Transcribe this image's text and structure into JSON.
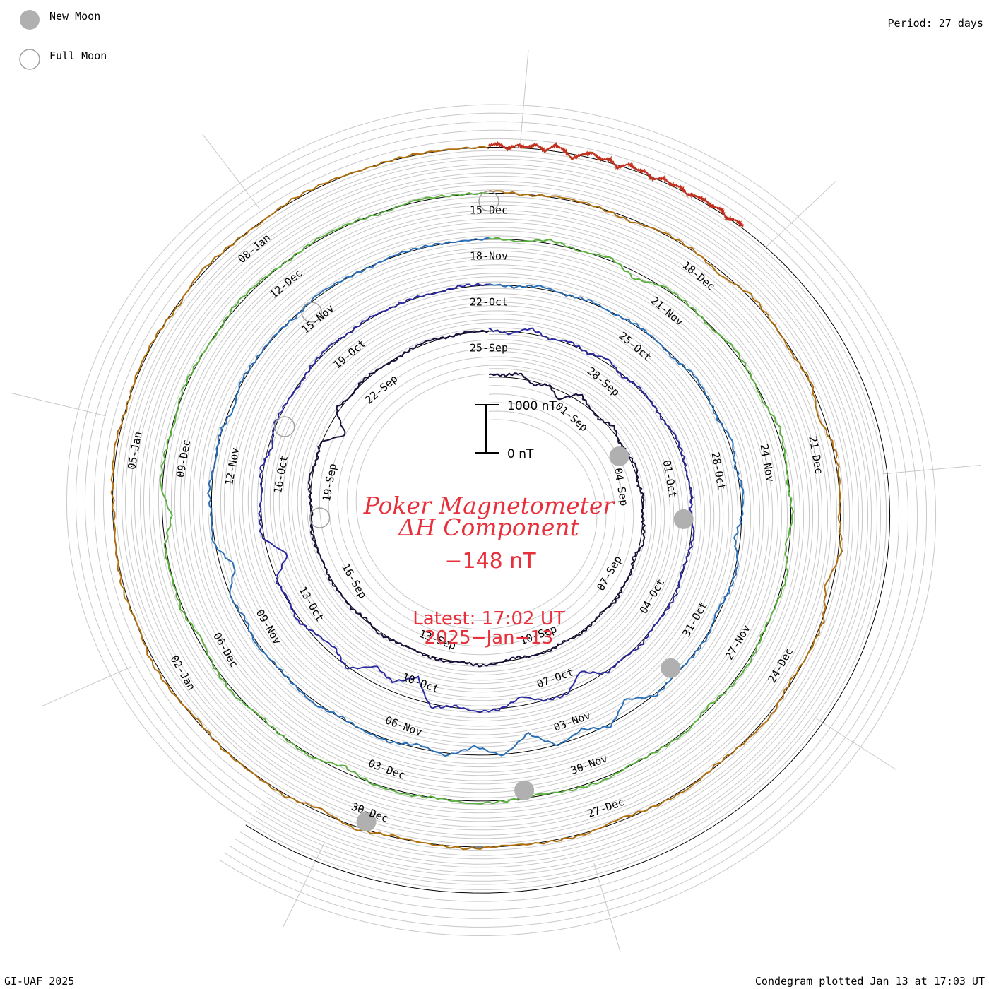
{
  "legend": {
    "new_moon_label": "New Moon",
    "full_moon_label": "Full Moon",
    "new_moon_color": "#b0b0b0",
    "full_moon_color": "#a0a0a0"
  },
  "period_label": "Period: 27 days",
  "footer_left": "GI-UAF 2025",
  "footer_right": "Condegram plotted Jan 13 at 17:03 UT",
  "center": {
    "title_line1": "Poker Magnetometer",
    "title_line2": "ΔH Component",
    "current_value": "−148 nT",
    "latest_line1": "Latest: 17:02 UT",
    "latest_line2": "2025−Jan−13",
    "scale_top": "1000 nT",
    "scale_bottom": "0 nT"
  },
  "chart_data": {
    "type": "line",
    "title": "Poker Magnetometer ΔH Component",
    "period_days": 27,
    "units": "nT",
    "scale_bar_nT": [
      0,
      1000
    ],
    "latest_value_nT": -148,
    "latest_time": "2025-Jan-13 17:02 UT",
    "date_labels": [
      "01-Sep",
      "04-Sep",
      "07-Sep",
      "10-Sep",
      "13-Sep",
      "16-Sep",
      "19-Sep",
      "22-Sep",
      "25-Sep",
      "28-Sep",
      "01-Oct",
      "04-Oct",
      "07-Oct",
      "10-Oct",
      "13-Oct",
      "16-Oct",
      "19-Oct",
      "22-Oct",
      "25-Oct",
      "28-Oct",
      "31-Oct",
      "03-Nov",
      "06-Nov",
      "09-Nov",
      "12-Nov",
      "15-Nov",
      "18-Nov",
      "21-Nov",
      "24-Nov",
      "27-Nov",
      "30-Nov",
      "03-Dec",
      "06-Dec",
      "09-Dec",
      "12-Dec",
      "15-Dec",
      "18-Dec",
      "21-Dec",
      "24-Dec",
      "27-Dec",
      "30-Dec",
      "02-Jan",
      "05-Jan",
      "08-Jan"
    ],
    "rotations": [
      {
        "start": "2024-08-29",
        "color": "#1a0f3c",
        "trace_nT": [
          60,
          40,
          120,
          -80,
          30,
          -200,
          150,
          20,
          -40,
          90,
          -30,
          10,
          60,
          -20,
          40,
          -10,
          30,
          80,
          -60,
          20,
          0,
          50,
          -30,
          10,
          40,
          -20,
          30,
          10,
          -60,
          20,
          60,
          -10,
          40,
          30,
          -20,
          10,
          50,
          -40,
          20,
          0,
          30,
          -10,
          20,
          40,
          -30,
          10,
          60,
          -20,
          30,
          -400,
          80,
          -20,
          40,
          10,
          -30,
          20,
          50,
          -10,
          30,
          0
        ]
      },
      {
        "start": "2024-09-25",
        "color": "#2b2aa0",
        "trace_nT": [
          40,
          -60,
          120,
          -30,
          60,
          -20,
          90,
          -40,
          30,
          10,
          -20,
          50,
          30,
          -10,
          20,
          -40,
          60,
          10,
          -30,
          40,
          20,
          -10,
          50,
          -20,
          30,
          -300,
          40,
          10,
          -200,
          20,
          60,
          -40,
          80,
          -500,
          -200,
          -350,
          40,
          -150,
          -80,
          60,
          -30,
          20,
          -400,
          50,
          30,
          -20,
          60,
          -80,
          40,
          10,
          -30,
          20,
          50,
          -10,
          30,
          0,
          20,
          -20,
          40,
          10
        ]
      },
      {
        "start": "2024-10-22",
        "color": "#2a70b8",
        "trace_nT": [
          20,
          -30,
          60,
          -10,
          40,
          -20,
          30,
          10,
          -40,
          60,
          20,
          -30,
          80,
          -20,
          60,
          10,
          -120,
          40,
          20,
          -60,
          30,
          10,
          -20,
          40,
          -300,
          60,
          -150,
          20,
          -400,
          30,
          -200,
          60,
          -80,
          40,
          20,
          -30,
          60,
          10,
          -20,
          40,
          -60,
          20,
          -300,
          40,
          10,
          60,
          -20,
          30,
          -80,
          40,
          10,
          20,
          -30,
          50,
          10,
          -20,
          30,
          20,
          0,
          10
        ]
      },
      {
        "start": "2024-11-18",
        "color": "#5cb040",
        "trace_nT": [
          30,
          -40,
          80,
          -20,
          60,
          -150,
          40,
          20,
          -30,
          60,
          10,
          -40,
          80,
          20,
          -30,
          40,
          -80,
          60,
          10,
          -20,
          50,
          30,
          -60,
          40,
          10,
          -20,
          60,
          30,
          -40,
          20,
          60,
          -10,
          40,
          20,
          -120,
          40,
          10,
          -30,
          60,
          20,
          -80,
          40,
          10,
          30,
          -200,
          50,
          20,
          -30,
          40,
          10,
          -20,
          60,
          30,
          -10,
          40,
          20,
          -30,
          50,
          10,
          0
        ]
      },
      {
        "start": "2024-12-15",
        "color": "#b07010",
        "trace_nT": [
          60,
          -20,
          40,
          10,
          -60,
          30,
          20,
          -80,
          60,
          10,
          -40,
          30,
          -120,
          40,
          20,
          -30,
          60,
          -150,
          30,
          10,
          -40,
          60,
          20,
          -30,
          40,
          10,
          -60,
          30,
          20,
          -20,
          40,
          10,
          -30,
          60,
          -80,
          40,
          10,
          20,
          -40,
          30,
          60,
          -20,
          40,
          10,
          -30,
          20,
          50,
          -10,
          30,
          20,
          -40,
          60,
          10,
          -20,
          40,
          30,
          -10,
          20,
          10,
          0
        ]
      },
      {
        "start": "2025-01-11",
        "color": "#c0301c",
        "trace_nT": [
          40,
          80,
          -40,
          60,
          20,
          100,
          -20,
          140,
          60,
          -100,
          40,
          120,
          20,
          80,
          -60,
          100,
          40,
          60,
          -40,
          80,
          20,
          60,
          -20,
          40,
          60,
          20,
          80,
          -30,
          60,
          40
        ]
      }
    ],
    "new_moon_dates": [
      "2024-09-03",
      "2024-10-02",
      "2024-11-01",
      "2024-12-01",
      "2024-12-30"
    ],
    "full_moon_dates": [
      "2024-09-18",
      "2024-10-17",
      "2024-11-15",
      "2024-12-15"
    ]
  }
}
